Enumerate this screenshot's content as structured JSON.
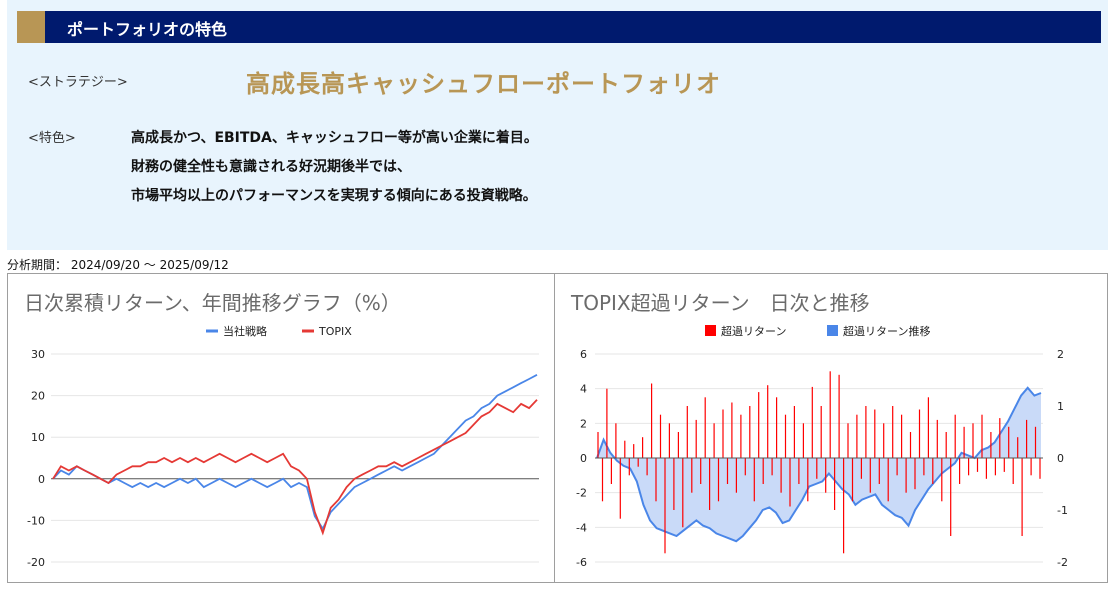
{
  "header": {
    "title": "ポートフォリオの特色"
  },
  "strategy": {
    "label": "<ストラテジー>",
    "value": "高成長高キャッシュフローポートフォリオ"
  },
  "features": {
    "label": "<特色>",
    "lines": [
      "高成長かつ、EBITDA、キャッシュフロー等が高い企業に着目。",
      "財務の健全性も意識される好況期後半では、",
      "市場平均以上のパフォーマンスを実現する傾向にある投資戦略。"
    ]
  },
  "period": "分析期間： 2024/09/20 ～ 2025/09/12",
  "colors": {
    "navy": "#001a6e",
    "gold": "#b89655",
    "panel": "#e8f4fd",
    "blue": "#4a86e8",
    "red": "#e53935",
    "excess_bar": "#ff0000",
    "excess_area": "#c9daf8"
  },
  "chart_data": [
    {
      "type": "line",
      "title": "日次累積リターン、年間推移グラフ（%）",
      "legend_position": "top",
      "ylim": [
        -20,
        30
      ],
      "yticks": [
        30,
        20,
        10,
        0,
        -10,
        -20
      ],
      "grid": true,
      "series": [
        {
          "name": "当社戦略",
          "color": "#4a86e8",
          "values": [
            0,
            2,
            1,
            3,
            2,
            1,
            0,
            -1,
            0,
            -1,
            -2,
            -1,
            -2,
            -1,
            -2,
            -1,
            0,
            -1,
            0,
            -2,
            -1,
            0,
            -1,
            -2,
            -1,
            0,
            -1,
            -2,
            -1,
            0,
            -2,
            -1,
            -2,
            -9,
            -12,
            -8,
            -6,
            -4,
            -2,
            -1,
            0,
            1,
            2,
            3,
            2,
            3,
            4,
            5,
            6,
            8,
            10,
            12,
            14,
            15,
            17,
            18,
            20,
            21,
            22,
            23,
            24,
            25
          ]
        },
        {
          "name": "TOPIX",
          "color": "#e53935",
          "values": [
            0,
            3,
            2,
            3,
            2,
            1,
            0,
            -1,
            1,
            2,
            3,
            3,
            4,
            4,
            5,
            4,
            5,
            4,
            5,
            4,
            5,
            6,
            5,
            4,
            5,
            6,
            5,
            4,
            5,
            6,
            3,
            2,
            0,
            -8,
            -13,
            -7,
            -5,
            -2,
            0,
            1,
            2,
            3,
            3,
            4,
            3,
            4,
            5,
            6,
            7,
            8,
            9,
            10,
            11,
            13,
            15,
            16,
            18,
            17,
            16,
            18,
            17,
            19
          ]
        }
      ]
    },
    {
      "type": "bar",
      "title": "TOPIX超過リターン　日次と推移",
      "legend_position": "top",
      "ylim": [
        -6,
        6
      ],
      "yticks": [
        6,
        4,
        2,
        0,
        -2,
        -4,
        -6
      ],
      "y2lim": [
        -2,
        2
      ],
      "y2ticks": [
        2,
        1,
        0,
        -1,
        -2
      ],
      "grid": true,
      "series": [
        {
          "name": "超過リターン",
          "type": "bar",
          "color": "#ff0000",
          "axis": "left",
          "values": [
            1.5,
            -2.5,
            4.0,
            -1.5,
            2.0,
            -3.5,
            1.0,
            -1.0,
            0.8,
            -0.5,
            1.2,
            -1.0,
            4.3,
            -2.5,
            2.5,
            -5.5,
            2.0,
            -3.0,
            1.5,
            -4.0,
            3.0,
            -2.0,
            2.2,
            -1.5,
            3.5,
            -3.0,
            2.0,
            -2.5,
            2.8,
            -1.5,
            3.2,
            -2.0,
            2.5,
            -1.0,
            3.0,
            -2.5,
            3.8,
            -1.5,
            4.2,
            -1.0,
            3.5,
            -2.0,
            2.5,
            -2.8,
            3.0,
            -1.5,
            2.0,
            -2.5,
            4.1,
            -1.2,
            3.0,
            -2.0,
            5.0,
            -3.0,
            4.8,
            -5.5,
            2.0,
            -2.5,
            2.5,
            -1.2,
            3.0,
            -2.0,
            2.8,
            -1.5,
            2.0,
            -2.5,
            3.0,
            -1.0,
            2.5,
            -2.0,
            1.5,
            -1.8,
            2.8,
            -1.0,
            3.5,
            -1.5,
            2.2,
            -2.5,
            1.5,
            -4.5,
            2.5,
            -1.5,
            1.8,
            -1.0,
            2.0,
            -0.8,
            2.5,
            -1.2,
            1.5,
            -1.0,
            2.3,
            -0.8,
            1.8,
            -1.5,
            1.2,
            -4.5,
            2.2,
            -1.0,
            1.8,
            -1.2
          ]
        },
        {
          "name": "超過リターン推移",
          "type": "area",
          "color": "#4a86e8",
          "axis": "right",
          "values": [
            0,
            0.35,
            0.1,
            -0.05,
            -0.15,
            -0.2,
            -0.45,
            -0.9,
            -1.2,
            -1.35,
            -1.4,
            -1.45,
            -1.5,
            -1.4,
            -1.3,
            -1.2,
            -1.3,
            -1.35,
            -1.45,
            -1.5,
            -1.55,
            -1.6,
            -1.5,
            -1.35,
            -1.2,
            -1.0,
            -0.95,
            -1.05,
            -1.25,
            -1.2,
            -1.0,
            -0.8,
            -0.55,
            -0.5,
            -0.45,
            -0.3,
            -0.45,
            -0.6,
            -0.7,
            -0.9,
            -0.8,
            -0.75,
            -0.7,
            -0.9,
            -1.0,
            -1.1,
            -1.15,
            -1.3,
            -1.0,
            -0.8,
            -0.6,
            -0.45,
            -0.3,
            -0.2,
            -0.1,
            0.1,
            0.05,
            0,
            0.15,
            0.2,
            0.3,
            0.5,
            0.7,
            0.95,
            1.2,
            1.35,
            1.2,
            1.25
          ]
        }
      ]
    }
  ]
}
